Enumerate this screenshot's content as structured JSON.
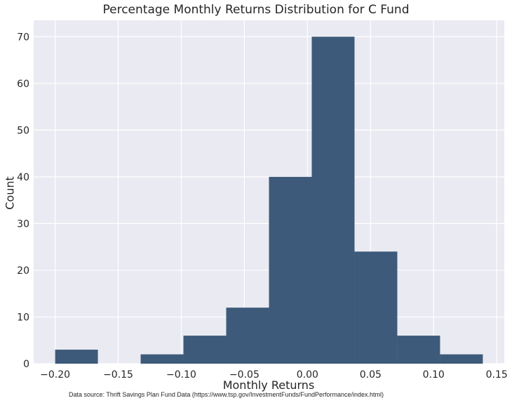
{
  "chart_data": {
    "type": "bar",
    "title": "Percentage Monthly Returns Distribution for C Fund",
    "xlabel": "Monthly Returns",
    "ylabel": "Count",
    "bins": [
      {
        "start": -0.2,
        "end": -0.1661,
        "count": 3
      },
      {
        "start": -0.1661,
        "end": -0.1322,
        "count": 0
      },
      {
        "start": -0.1322,
        "end": -0.0983,
        "count": 2
      },
      {
        "start": -0.0983,
        "end": -0.0644,
        "count": 6
      },
      {
        "start": -0.0644,
        "end": -0.0305,
        "count": 12
      },
      {
        "start": -0.0305,
        "end": 0.0034,
        "count": 40
      },
      {
        "start": 0.0034,
        "end": 0.0373,
        "count": 70
      },
      {
        "start": 0.0373,
        "end": 0.0712,
        "count": 24
      },
      {
        "start": 0.0712,
        "end": 0.1051,
        "count": 6
      },
      {
        "start": 0.1051,
        "end": 0.139,
        "count": 2
      }
    ],
    "xlim": [
      -0.217,
      0.156
    ],
    "ylim": [
      0,
      73.5
    ],
    "xticks": [
      -0.2,
      -0.15,
      -0.1,
      -0.05,
      0.0,
      0.05,
      0.1,
      0.15
    ],
    "xtick_labels": [
      "−0.20",
      "−0.15",
      "−0.10",
      "−0.05",
      "0.00",
      "0.05",
      "0.10",
      "0.15"
    ],
    "yticks": [
      0,
      10,
      20,
      30,
      40,
      50,
      60,
      70
    ],
    "ytick_labels": [
      "0",
      "10",
      "20",
      "30",
      "40",
      "50",
      "60",
      "70"
    ],
    "grid": true,
    "bar_color": "#3d5a7a",
    "background_color": "#eaeaf2",
    "grid_color": "#ffffff"
  },
  "annotations": {
    "source": "Data source: Thrift Savings Plan Fund Data (https://www.tsp.gov/InvestmentFunds/FundPerformance/index.html)"
  }
}
